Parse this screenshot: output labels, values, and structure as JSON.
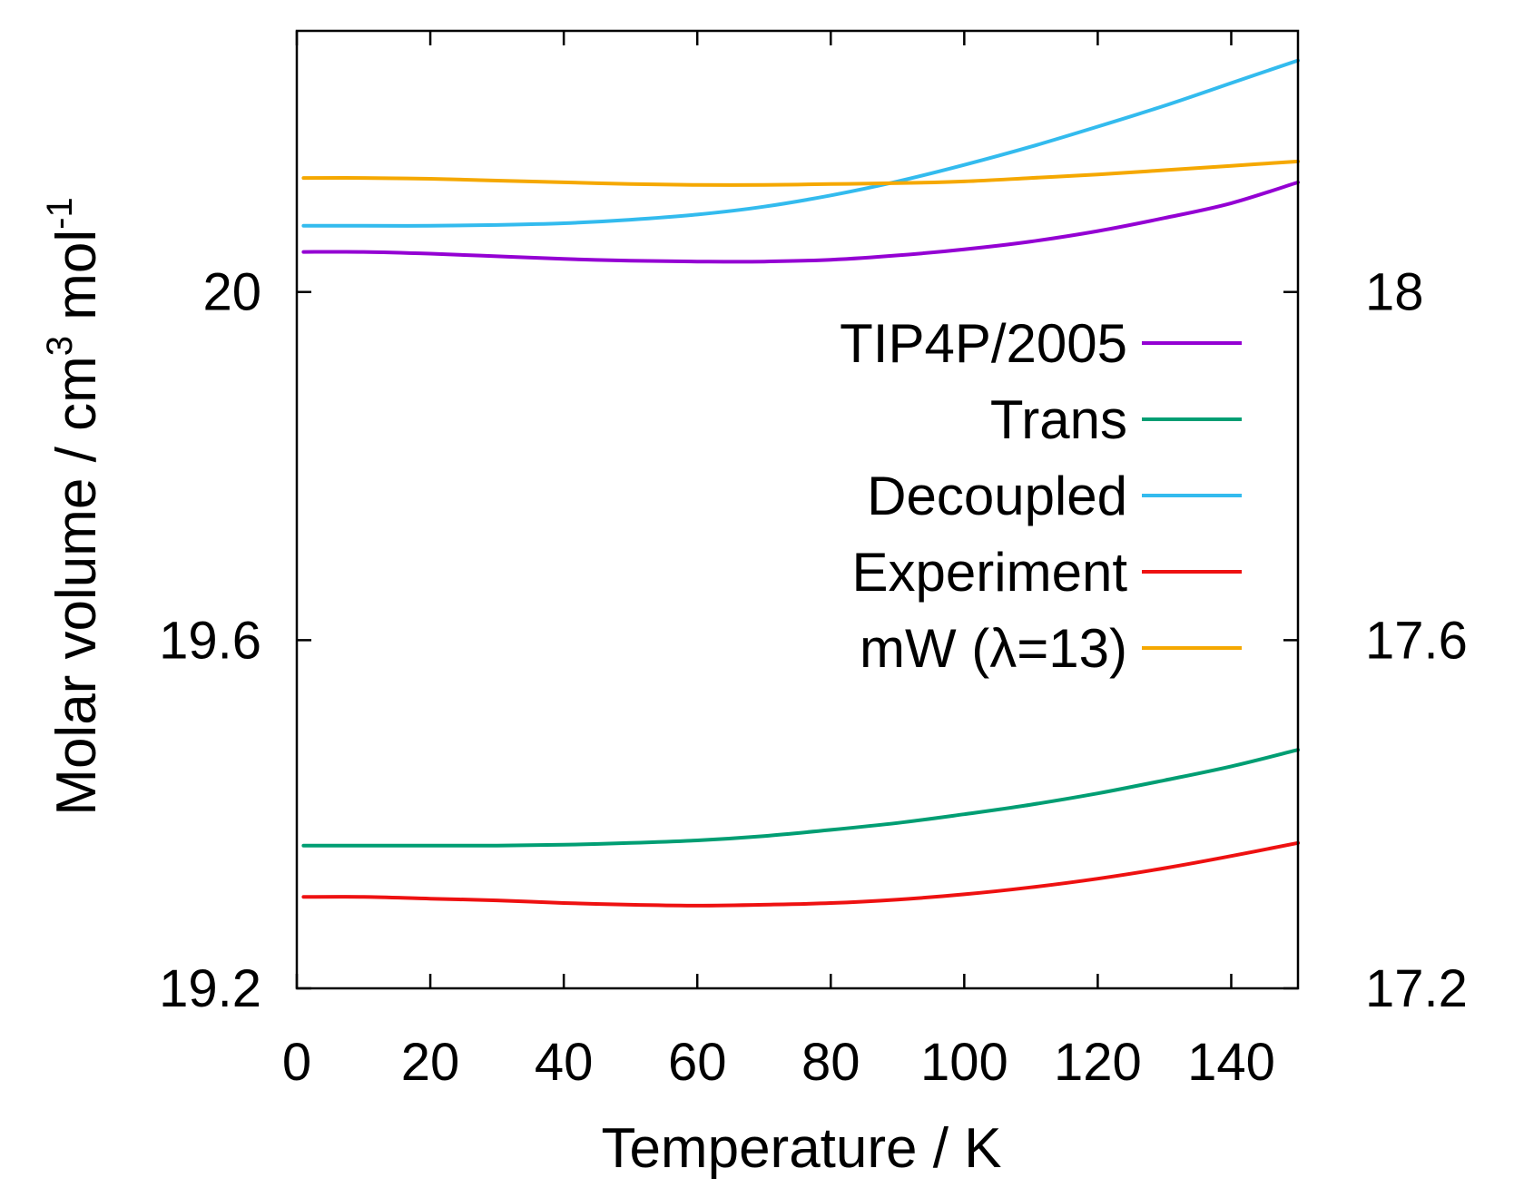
{
  "chart_data": {
    "type": "line",
    "xlabel": "Temperature / K",
    "ylabel_main": "Molar volume / cm",
    "ylabel_sup1": "3",
    "ylabel_mid": " mol",
    "ylabel_sup2": "-1",
    "xlim": [
      0,
      150
    ],
    "ylim_left": [
      19.2,
      20.3
    ],
    "ylim_right": [
      17.2,
      18.3
    ],
    "x_ticks": [
      0,
      20,
      40,
      60,
      80,
      100,
      120,
      140
    ],
    "x_tick_labels": [
      "0",
      "20",
      "40",
      "60",
      "80",
      "100",
      "120",
      "140"
    ],
    "y_left_ticks": [
      19.2,
      19.6,
      20.0
    ],
    "y_left_tick_labels": [
      "19.2",
      "19.6",
      "20"
    ],
    "y_right_ticks": [
      17.2,
      17.6,
      18.0
    ],
    "y_right_tick_labels": [
      "17.2",
      "17.6",
      "18"
    ],
    "legend_position": "right-middle",
    "grid": false,
    "series": [
      {
        "name": "TIP4P/2005",
        "color": "#9400d3",
        "axis": "left",
        "x": [
          1,
          10,
          20,
          30,
          40,
          50,
          60,
          70,
          80,
          90,
          100,
          110,
          120,
          130,
          140,
          150
        ],
        "y": [
          20.046,
          20.046,
          20.044,
          20.041,
          20.038,
          20.036,
          20.035,
          20.035,
          20.037,
          20.042,
          20.049,
          20.058,
          20.07,
          20.085,
          20.102,
          20.126
        ]
      },
      {
        "name": "Trans",
        "color": "#009e73",
        "axis": "left",
        "x": [
          1,
          10,
          20,
          30,
          40,
          50,
          60,
          70,
          80,
          90,
          100,
          110,
          120,
          130,
          140,
          150
        ],
        "y": [
          19.364,
          19.364,
          19.364,
          19.364,
          19.365,
          19.367,
          19.37,
          19.375,
          19.382,
          19.39,
          19.4,
          19.411,
          19.424,
          19.439,
          19.455,
          19.474
        ]
      },
      {
        "name": "Decoupled",
        "color": "#33bbee",
        "axis": "left",
        "x": [
          1,
          10,
          20,
          30,
          40,
          50,
          60,
          70,
          80,
          90,
          100,
          110,
          120,
          130,
          140,
          150
        ],
        "y": [
          20.076,
          20.076,
          20.076,
          20.077,
          20.079,
          20.083,
          20.089,
          20.098,
          20.111,
          20.127,
          20.146,
          20.167,
          20.19,
          20.214,
          20.24,
          20.266
        ]
      },
      {
        "name": "Experiment",
        "color": "#ee1111",
        "axis": "left",
        "x": [
          1,
          10,
          20,
          30,
          40,
          50,
          60,
          70,
          80,
          90,
          100,
          110,
          120,
          130,
          140,
          150
        ],
        "y": [
          19.305,
          19.305,
          19.303,
          19.301,
          19.298,
          19.296,
          19.295,
          19.296,
          19.298,
          19.302,
          19.308,
          19.316,
          19.326,
          19.338,
          19.352,
          19.367
        ]
      },
      {
        "name": "mW (λ=13)",
        "color": "#f5a800",
        "axis": "left",
        "x": [
          1,
          10,
          20,
          30,
          40,
          50,
          60,
          70,
          80,
          90,
          100,
          110,
          120,
          130,
          140,
          150
        ],
        "y": [
          20.131,
          20.131,
          20.13,
          20.128,
          20.126,
          20.124,
          20.123,
          20.123,
          20.124,
          20.125,
          20.127,
          20.131,
          20.135,
          20.14,
          20.145,
          20.15
        ]
      }
    ]
  }
}
